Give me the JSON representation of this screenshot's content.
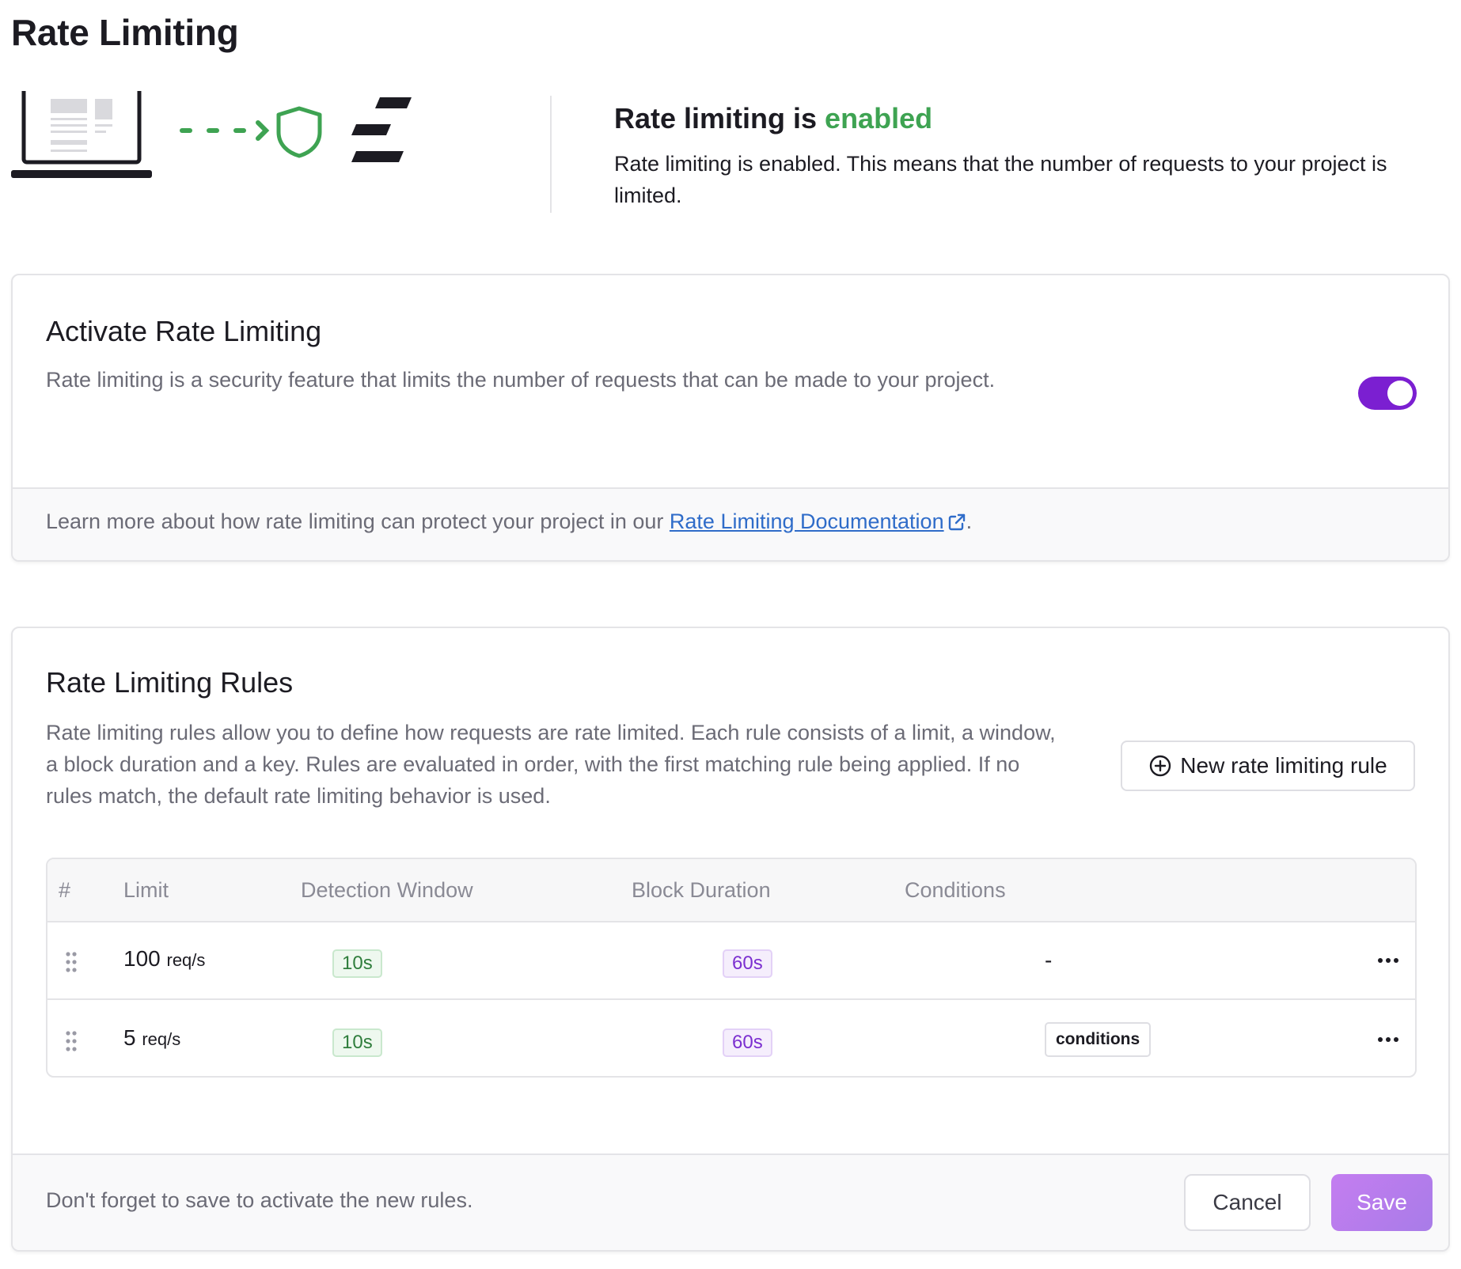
{
  "page": {
    "title": "Rate Limiting"
  },
  "hero": {
    "heading_prefix": "Rate limiting is ",
    "heading_status": "enabled",
    "description": "Rate limiting is enabled. This means that the number of requests to your project is limited.",
    "status_color": "#3ea352"
  },
  "activate": {
    "title": "Activate Rate Limiting",
    "description": "Rate limiting is a security feature that limits the number of requests that can be made to your project.",
    "toggle_on": true,
    "footer_prefix": "Learn more about how rate limiting can protect your project in our ",
    "doc_link": "Rate Limiting Documentation",
    "footer_suffix": "."
  },
  "rules": {
    "title": "Rate Limiting Rules",
    "description": "Rate limiting rules allow you to define how requests are rate limited. Each rule consists of a limit, a window, a block duration and a key. Rules are evaluated in order, with the first matching rule being applied. If no rules match, the default rate limiting behavior is used.",
    "new_rule_label": "New rate limiting rule",
    "columns": [
      "#",
      "Limit",
      "Detection Window",
      "Block Duration",
      "Conditions"
    ],
    "rows": [
      {
        "limit": "100",
        "unit": "req/s",
        "window": "10s",
        "block": "60s",
        "conditions": "-"
      },
      {
        "limit": "5",
        "unit": "req/s",
        "window": "10s",
        "block": "60s",
        "conditions": "conditions"
      }
    ],
    "footer_note": "Don't forget to save to activate the new rules.",
    "cancel_label": "Cancel",
    "save_label": "Save"
  },
  "colors": {
    "accent": "#7b1fd1",
    "success": "#3ea352",
    "link": "#2f6cc9"
  }
}
